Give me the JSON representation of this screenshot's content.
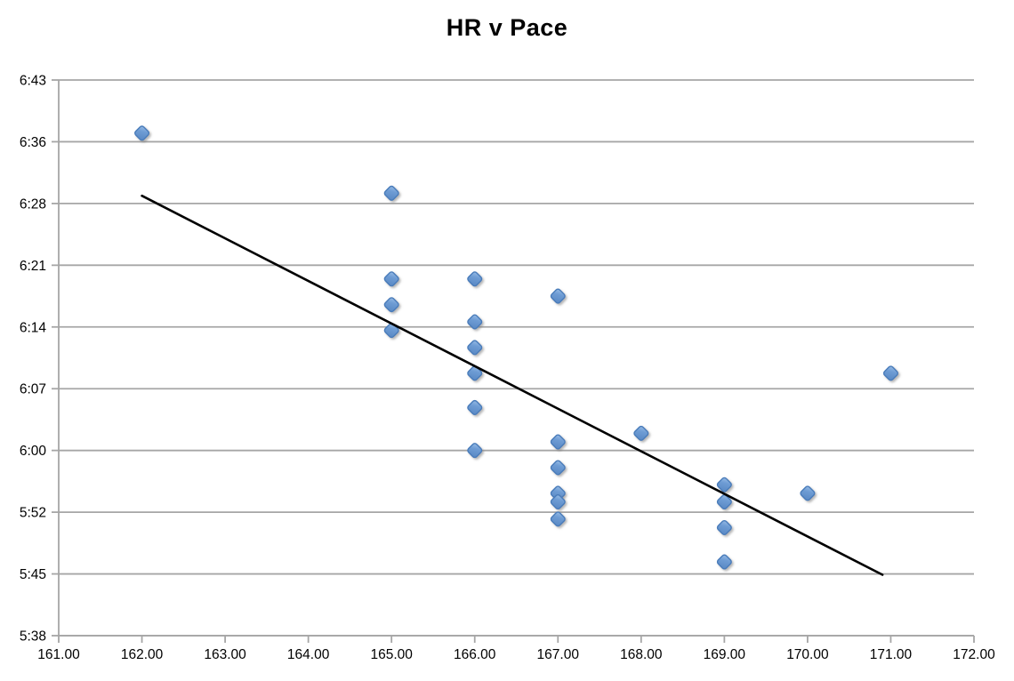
{
  "chart_data": {
    "type": "scatter",
    "title": "HR v Pace",
    "xlabel": "",
    "ylabel": "",
    "legend": "none",
    "grid": "horizontal-only",
    "xlim": [
      161,
      172
    ],
    "ylim_minutes": [
      338.4,
      403.2
    ],
    "x_ticks": [
      {
        "label": "161.00",
        "value": 161
      },
      {
        "label": "162.00",
        "value": 162
      },
      {
        "label": "163.00",
        "value": 163
      },
      {
        "label": "164.00",
        "value": 164
      },
      {
        "label": "165.00",
        "value": 165
      },
      {
        "label": "166.00",
        "value": 166
      },
      {
        "label": "167.00",
        "value": 167
      },
      {
        "label": "168.00",
        "value": 168
      },
      {
        "label": "169.00",
        "value": 169
      },
      {
        "label": "170.00",
        "value": 170
      },
      {
        "label": "171.00",
        "value": 171
      },
      {
        "label": "172.00",
        "value": 172
      }
    ],
    "y_ticks": [
      {
        "label": "5:38",
        "minutes": 338.4
      },
      {
        "label": "5:45",
        "minutes": 345.6
      },
      {
        "label": "5:52",
        "minutes": 352.8
      },
      {
        "label": "6:00",
        "minutes": 360.0
      },
      {
        "label": "6:07",
        "minutes": 367.2
      },
      {
        "label": "6:14",
        "minutes": 374.4
      },
      {
        "label": "6:21",
        "minutes": 381.6
      },
      {
        "label": "6:28",
        "minutes": 388.8
      },
      {
        "label": "6:36",
        "minutes": 396.0
      },
      {
        "label": "6:43",
        "minutes": 403.2
      }
    ],
    "series": [
      {
        "name": "HR v Pace",
        "marker": "diamond",
        "points": [
          {
            "hr": 162,
            "pace": "6:37"
          },
          {
            "hr": 165,
            "pace": "6:30"
          },
          {
            "hr": 165,
            "pace": "6:20"
          },
          {
            "hr": 165,
            "pace": "6:17"
          },
          {
            "hr": 165,
            "pace": "6:14"
          },
          {
            "hr": 166,
            "pace": "6:20"
          },
          {
            "hr": 166,
            "pace": "6:15"
          },
          {
            "hr": 166,
            "pace": "6:12"
          },
          {
            "hr": 166,
            "pace": "6:09"
          },
          {
            "hr": 166,
            "pace": "6:05"
          },
          {
            "hr": 166,
            "pace": "6:00"
          },
          {
            "hr": 167,
            "pace": "6:18"
          },
          {
            "hr": 167,
            "pace": "6:01"
          },
          {
            "hr": 167,
            "pace": "5:58"
          },
          {
            "hr": 167,
            "pace": "5:55"
          },
          {
            "hr": 167,
            "pace": "5:54"
          },
          {
            "hr": 167,
            "pace": "5:52"
          },
          {
            "hr": 168,
            "pace": "6:02"
          },
          {
            "hr": 169,
            "pace": "5:56"
          },
          {
            "hr": 169,
            "pace": "5:54"
          },
          {
            "hr": 169,
            "pace": "5:51"
          },
          {
            "hr": 169,
            "pace": "5:47"
          },
          {
            "hr": 170,
            "pace": "5:55"
          },
          {
            "hr": 171,
            "pace": "6:09"
          }
        ]
      }
    ],
    "trendline": {
      "x1": 162.0,
      "pace1_minutes": 389.7,
      "x2": 170.9,
      "pace2_minutes": 345.5
    },
    "colors": {
      "marker_fill_light": "#8fb6e2",
      "marker_fill": "#6493cd",
      "marker_border": "#4a7cba",
      "trendline": "#000000",
      "gridline": "#a6a6a6",
      "axis": "#a6a6a6",
      "title": "#000000",
      "tick_label": "#000000"
    }
  }
}
